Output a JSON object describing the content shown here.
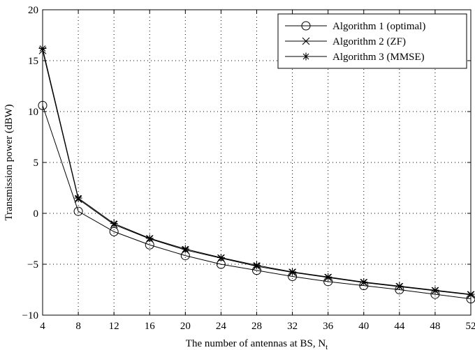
{
  "chart_data": {
    "type": "line",
    "xlabel": "The number of antennas at BS, N",
    "xlabel_subscript": "t",
    "ylabel": "Transmission power (dBW)",
    "xlim": [
      4,
      52
    ],
    "ylim": [
      -10,
      20
    ],
    "xticks": [
      4,
      8,
      12,
      16,
      20,
      24,
      28,
      32,
      36,
      40,
      44,
      48,
      52
    ],
    "yticks": [
      -10,
      -5,
      0,
      5,
      10,
      15,
      20
    ],
    "grid": true,
    "legend_position": "top-right",
    "x": [
      4,
      8,
      12,
      16,
      20,
      24,
      28,
      32,
      36,
      40,
      44,
      48,
      52
    ],
    "series": [
      {
        "name": "Algorithm 1 (optimal)",
        "marker": "circle",
        "values": [
          10.6,
          0.2,
          -1.8,
          -3.1,
          -4.15,
          -5.0,
          -5.6,
          -6.2,
          -6.7,
          -7.1,
          -7.5,
          -7.95,
          -8.4
        ]
      },
      {
        "name": "Algorithm 2 (ZF)",
        "marker": "x",
        "values": [
          16.0,
          1.4,
          -1.1,
          -2.5,
          -3.6,
          -4.4,
          -5.2,
          -5.8,
          -6.3,
          -6.8,
          -7.2,
          -7.6,
          -8.0
        ]
      },
      {
        "name": "Algorithm 3 (MMSE)",
        "marker": "star",
        "values": [
          16.2,
          1.5,
          -1.0,
          -2.45,
          -3.5,
          -4.35,
          -5.1,
          -5.75,
          -6.25,
          -6.75,
          -7.15,
          -7.55,
          -7.95
        ]
      }
    ]
  }
}
